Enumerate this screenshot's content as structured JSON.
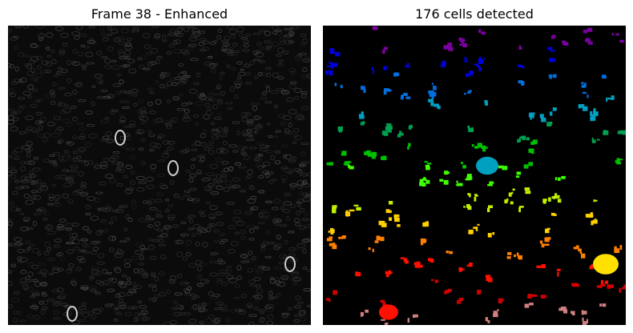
{
  "panels": {
    "left": {
      "title": "Frame 38 - Enhanced",
      "background": "#0b0b0b"
    },
    "right": {
      "title": "176 cells detected",
      "background": "#000000",
      "cell_count": 176,
      "colormap": "nipy_spectral",
      "palette": [
        "#7a00a0",
        "#0000dd",
        "#0070e0",
        "#00a0c0",
        "#00a050",
        "#00c000",
        "#40ff00",
        "#c0f000",
        "#ffd000",
        "#ff8000",
        "#ff1000",
        "#d00000",
        "#d08080"
      ]
    }
  }
}
